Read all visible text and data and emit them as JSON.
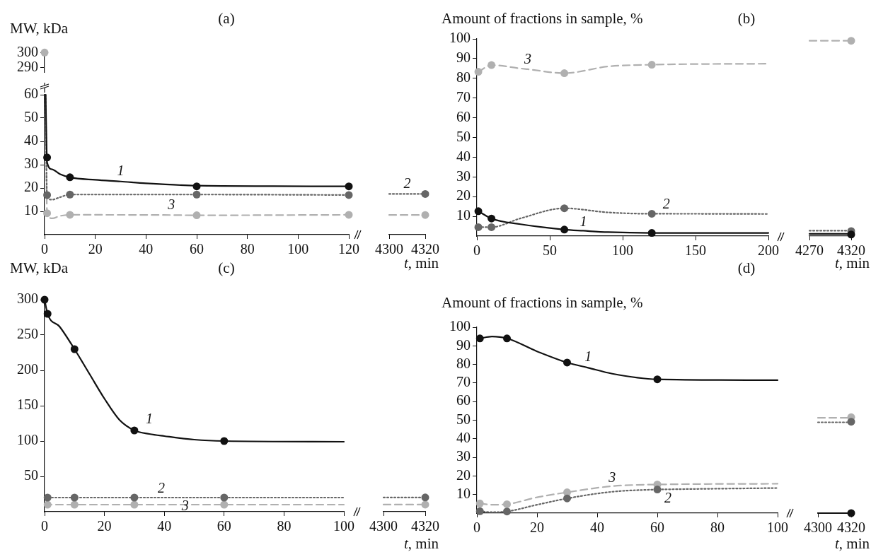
{
  "chart_data": [
    {
      "type": "line",
      "title": "(a)",
      "ylabel": "MW, kDa",
      "xlim": [
        0,
        120
      ],
      "ylim": [
        287,
        302
      ],
      "yticks": [
        290,
        300
      ],
      "tick_labels": "y",
      "series": [
        {
          "type": "scatter",
          "color": "#b0b0b0",
          "marker": "circle",
          "x": [
            0
          ],
          "values": [
            300
          ]
        }
      ]
    },
    {
      "type": "line",
      "xlim": [
        0,
        120
      ],
      "xticks": [
        0,
        20,
        40,
        60,
        80,
        100,
        120
      ],
      "ylim": [
        0,
        60
      ],
      "yticks": [
        10,
        20,
        30,
        40,
        50,
        60
      ],
      "annotations": [
        {
          "text": "1",
          "x": 30,
          "y": 22.8
        },
        {
          "text": "3",
          "x": 50,
          "y": 8.4
        }
      ],
      "series": [
        {
          "type": "scatter",
          "color": "#111111",
          "marker": "circle",
          "x": [
            1,
            10,
            60,
            120
          ],
          "values": [
            33.1,
            24.6,
            20.7,
            20.7
          ]
        },
        {
          "type": "scatter",
          "color": "#666666",
          "marker": "circle",
          "x": [
            1,
            10,
            60,
            120
          ],
          "values": [
            17,
            17.2,
            17.2,
            17
          ]
        },
        {
          "type": "scatter",
          "color": "#b0b0b0",
          "marker": "circle",
          "x": [
            1,
            10,
            60,
            120
          ],
          "values": [
            9.2,
            8.5,
            8.3,
            8.5
          ]
        },
        {
          "type": "line",
          "color": "#111111",
          "marker": "none",
          "line_style": "solid",
          "x": [
            0.4,
            1,
            3,
            6,
            10,
            20,
            30,
            40,
            60,
            90,
            120
          ],
          "values": [
            60,
            31,
            28,
            26,
            24.6,
            23.5,
            22.8,
            22,
            21,
            20.8,
            20.7
          ]
        },
        {
          "type": "line",
          "color": "#666666",
          "marker": "none",
          "line_style": "dotted",
          "x": [
            0.4,
            1,
            3,
            6,
            10,
            60,
            120
          ],
          "values": [
            60,
            16,
            15,
            16,
            17.2,
            17.2,
            17
          ]
        },
        {
          "type": "line",
          "color": "#b0b0b0",
          "marker": "none",
          "line_style": "dashed",
          "x": [
            0.4,
            1,
            3,
            6,
            10,
            50,
            60,
            120
          ],
          "values": [
            60,
            9,
            7,
            8,
            8.5,
            8.4,
            8.3,
            8.5
          ]
        }
      ]
    },
    {
      "type": "line",
      "xlabel": "t, min",
      "xlim": [
        4300,
        4320
      ],
      "xticks": [
        4300,
        4320
      ],
      "ylim": [
        0,
        60
      ],
      "tick_labels": "x",
      "annotations": [
        {
          "text": "2",
          "x": 4310,
          "y": 17.2
        }
      ],
      "series": [
        {
          "type": "scatter",
          "color": "#666666",
          "marker": "circle",
          "x": [
            4320
          ],
          "values": [
            17.2
          ]
        },
        {
          "type": "scatter",
          "color": "#b0b0b0",
          "marker": "circle",
          "x": [
            4320
          ],
          "values": [
            8.3
          ]
        },
        {
          "type": "line",
          "color": "#666666",
          "marker": "none",
          "line_style": "dotted",
          "x": [
            4300,
            4310,
            4320
          ],
          "values": [
            17.2,
            17.2,
            17.2
          ]
        },
        {
          "type": "line",
          "color": "#b0b0b0",
          "marker": "none",
          "line_style": "dashed",
          "x": [
            4300,
            4320
          ],
          "values": [
            8.3,
            8.3
          ]
        }
      ]
    },
    {
      "type": "line",
      "title": "(b)",
      "ylabel": "Amount of fractions in sample, %",
      "xlim": [
        0,
        200
      ],
      "xticks": [
        0,
        50,
        100,
        150,
        200
      ],
      "ylim": [
        0,
        100
      ],
      "yticks": [
        10,
        20,
        30,
        40,
        50,
        60,
        70,
        80,
        90,
        100
      ],
      "annotations": [
        {
          "text": "3",
          "x": 35,
          "y": 84.6
        },
        {
          "text": "2",
          "x": 130,
          "y": 11.3
        },
        {
          "text": "1",
          "x": 73,
          "y": 2.7
        }
      ],
      "series": [
        {
          "type": "scatter",
          "color": "#111111",
          "marker": "circle",
          "x": [
            1,
            10,
            60,
            120
          ],
          "values": [
            12.6,
            8.9,
            3.3,
            1.6
          ]
        },
        {
          "type": "scatter",
          "color": "#666666",
          "marker": "circle",
          "x": [
            1,
            10,
            60,
            120
          ],
          "values": [
            4.5,
            4.5,
            14.1,
            11.3
          ]
        },
        {
          "type": "scatter",
          "color": "#b0b0b0",
          "marker": "circle",
          "x": [
            1,
            10,
            60,
            120
          ],
          "values": [
            83.3,
            86.7,
            82.6,
            86.9
          ]
        },
        {
          "type": "line",
          "color": "#111111",
          "marker": "none",
          "line_style": "solid",
          "x": [
            1,
            10,
            30,
            60,
            73,
            90,
            120,
            200
          ],
          "values": [
            12.6,
            8.9,
            6,
            3.3,
            2.7,
            2,
            1.6,
            1.6
          ]
        },
        {
          "type": "line",
          "color": "#666666",
          "marker": "none",
          "line_style": "dotted",
          "x": [
            1,
            10,
            30,
            60,
            90,
            120,
            130,
            200
          ],
          "values": [
            4.5,
            4.5,
            9,
            14.1,
            12,
            11.3,
            11.3,
            11.2
          ]
        },
        {
          "type": "line",
          "color": "#b0b0b0",
          "marker": "none",
          "line_style": "dashed",
          "x": [
            1,
            10,
            30,
            35,
            60,
            90,
            120,
            200
          ],
          "values": [
            83.3,
            86.7,
            85,
            84.6,
            82.6,
            86,
            86.9,
            87.4
          ]
        }
      ]
    },
    {
      "type": "line",
      "xlabel": "t, min",
      "xlim": [
        4270,
        4320
      ],
      "xticks": [
        4270,
        4320
      ],
      "ylim": [
        0,
        100
      ],
      "tick_labels": "x",
      "series": [
        {
          "type": "scatter",
          "color": "#111111",
          "marker": "circle",
          "x": [
            4320
          ],
          "values": [
            0.8
          ]
        },
        {
          "type": "scatter",
          "color": "#666666",
          "marker": "circle",
          "x": [
            4320
          ],
          "values": [
            2.5
          ]
        },
        {
          "type": "scatter",
          "color": "#b0b0b0",
          "marker": "circle",
          "x": [
            4320
          ],
          "values": [
            98
          ]
        },
        {
          "type": "line",
          "color": "#111111",
          "marker": "none",
          "line_style": "solid",
          "x": [
            4270,
            4320
          ],
          "values": [
            1.1,
            1.1
          ]
        },
        {
          "type": "line",
          "color": "#666666",
          "marker": "none",
          "line_style": "dotted",
          "x": [
            4270,
            4320
          ],
          "values": [
            2.7,
            2.7
          ]
        },
        {
          "type": "line",
          "color": "#b0b0b0",
          "marker": "none",
          "line_style": "dashed",
          "x": [
            4270,
            4320
          ],
          "values": [
            98,
            98
          ]
        }
      ]
    },
    {
      "type": "line",
      "title": "(c)",
      "ylabel": "MW, kDa",
      "xlim": [
        0,
        100
      ],
      "xticks": [
        0,
        20,
        40,
        60,
        80,
        100
      ],
      "ylim": [
        0,
        300
      ],
      "yticks": [
        50,
        100,
        150,
        200,
        250,
        300
      ],
      "annotations": [
        {
          "text": "1",
          "x": 35,
          "y": 110
        },
        {
          "text": "2",
          "x": 39,
          "y": 20
        },
        {
          "text": "3",
          "x": 47,
          "y": 10
        }
      ],
      "series": [
        {
          "type": "scatter",
          "color": "#111111",
          "marker": "circle",
          "x": [
            0,
            1,
            10,
            30,
            60
          ],
          "values": [
            300,
            280,
            230,
            115,
            100
          ]
        },
        {
          "type": "scatter",
          "color": "#666666",
          "marker": "circle",
          "x": [
            1,
            10,
            30,
            60
          ],
          "values": [
            20,
            20,
            20,
            20
          ]
        },
        {
          "type": "scatter",
          "color": "#b0b0b0",
          "marker": "circle",
          "x": [
            1,
            10,
            30,
            60
          ],
          "values": [
            10,
            10,
            10,
            10
          ]
        },
        {
          "type": "line",
          "color": "#111111",
          "marker": "none",
          "line_style": "solid",
          "x": [
            0,
            1,
            5,
            10,
            15,
            20,
            25,
            30,
            35,
            40,
            50,
            60,
            100
          ],
          "values": [
            300,
            280,
            262,
            230,
            195,
            160,
            130,
            115,
            110,
            107,
            102,
            100,
            99
          ]
        },
        {
          "type": "line",
          "color": "#666666",
          "marker": "none",
          "line_style": "dotted",
          "x": [
            0,
            39,
            100
          ],
          "values": [
            20,
            20,
            20
          ]
        },
        {
          "type": "line",
          "color": "#b0b0b0",
          "marker": "none",
          "line_style": "dashed",
          "x": [
            0,
            47,
            100
          ],
          "values": [
            10,
            10,
            10
          ]
        }
      ]
    },
    {
      "type": "line",
      "xlabel": "t, min",
      "xlim": [
        4300,
        4320
      ],
      "xticks": [
        4300,
        4320
      ],
      "ylim": [
        0,
        300
      ],
      "tick_labels": "x",
      "series": [
        {
          "type": "scatter",
          "color": "#666666",
          "marker": "circle",
          "x": [
            4320
          ],
          "values": [
            20
          ]
        },
        {
          "type": "scatter",
          "color": "#b0b0b0",
          "marker": "circle",
          "x": [
            4320
          ],
          "values": [
            10
          ]
        },
        {
          "type": "line",
          "color": "#666666",
          "marker": "none",
          "line_style": "dotted",
          "x": [
            4300,
            4320
          ],
          "values": [
            20,
            20
          ]
        },
        {
          "type": "line",
          "color": "#b0b0b0",
          "marker": "none",
          "line_style": "dashed",
          "x": [
            4300,
            4320
          ],
          "values": [
            10,
            10
          ]
        }
      ]
    },
    {
      "type": "line",
      "title": "(d)",
      "ylabel": "Amount of fractions in sample, %",
      "xlim": [
        0,
        100
      ],
      "xticks": [
        0,
        20,
        40,
        60,
        80,
        100
      ],
      "ylim": [
        0,
        100
      ],
      "yticks": [
        10,
        20,
        30,
        40,
        50,
        60,
        70,
        80,
        90,
        100
      ],
      "annotations": [
        {
          "text": "1",
          "x": 37,
          "y": 78.2
        },
        {
          "text": "3",
          "x": 45,
          "y": 14.5
        },
        {
          "text": "2",
          "x": 63.5,
          "y": 12.8
        }
      ],
      "series": [
        {
          "type": "scatter",
          "color": "#111111",
          "marker": "circle",
          "x": [
            1,
            10,
            30,
            60
          ],
          "values": [
            94,
            94,
            81,
            72
          ]
        },
        {
          "type": "scatter",
          "color": "#666666",
          "marker": "circle",
          "x": [
            1,
            10,
            30,
            60
          ],
          "values": [
            1,
            0.9,
            7.9,
            12.7
          ]
        },
        {
          "type": "scatter",
          "color": "#b0b0b0",
          "marker": "circle",
          "x": [
            1,
            10,
            30,
            60
          ],
          "values": [
            5.2,
            4.8,
            11.2,
            15.4
          ]
        },
        {
          "type": "line",
          "color": "#111111",
          "marker": "none",
          "line_style": "solid",
          "x": [
            1,
            5,
            10,
            20,
            30,
            37,
            45,
            60,
            100
          ],
          "values": [
            94,
            95,
            94,
            87,
            81,
            78.2,
            75,
            72,
            71.5
          ]
        },
        {
          "type": "line",
          "color": "#666666",
          "marker": "none",
          "line_style": "dotted",
          "x": [
            1,
            5,
            10,
            20,
            30,
            45,
            60,
            63.5,
            100
          ],
          "values": [
            1,
            0.5,
            0.9,
            4.5,
            7.9,
            11.5,
            12.7,
            12.8,
            13.5
          ]
        },
        {
          "type": "line",
          "color": "#b0b0b0",
          "marker": "none",
          "line_style": "dashed",
          "x": [
            1,
            5,
            10,
            20,
            30,
            45,
            60,
            100
          ],
          "values": [
            5.2,
            4.5,
            4.8,
            8.5,
            11.2,
            14.5,
            15.4,
            15.8
          ]
        }
      ]
    },
    {
      "type": "line",
      "xlabel": "t, min",
      "xlim": [
        4300,
        4320
      ],
      "xticks": [
        4300,
        4320
      ],
      "ylim": [
        0,
        100
      ],
      "tick_labels": "x",
      "series": [
        {
          "type": "scatter",
          "color": "#111111",
          "marker": "circle",
          "x": [
            4320
          ],
          "values": [
            0
          ]
        },
        {
          "type": "scatter",
          "color": "#666666",
          "marker": "circle",
          "x": [
            4320
          ],
          "values": [
            48.6
          ]
        },
        {
          "type": "scatter",
          "color": "#b0b0b0",
          "marker": "circle",
          "x": [
            4320
          ],
          "values": [
            51
          ]
        },
        {
          "type": "line",
          "color": "#111111",
          "marker": "none",
          "line_style": "solid",
          "x": [
            4300,
            4320
          ],
          "values": [
            0,
            0
          ]
        },
        {
          "type": "line",
          "color": "#666666",
          "marker": "none",
          "line_style": "dotted",
          "x": [
            4300,
            4320
          ],
          "values": [
            48.3,
            48.3
          ]
        },
        {
          "type": "line",
          "color": "#b0b0b0",
          "marker": "none",
          "line_style": "dashed",
          "x": [
            4300,
            4320
          ],
          "values": [
            50.7,
            50.7
          ]
        }
      ]
    }
  ]
}
